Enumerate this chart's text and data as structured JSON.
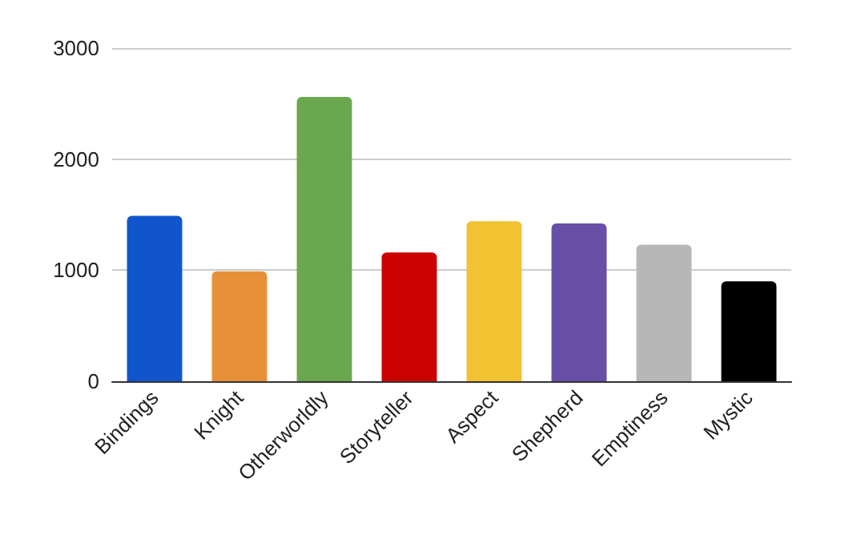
{
  "chart_data": {
    "type": "bar",
    "categories": [
      "Bindings",
      "Knight",
      "Otherworldly",
      "Storyteller",
      "Aspect",
      "Shepherd",
      "Emptiness",
      "Mystic"
    ],
    "values": [
      1490,
      990,
      2560,
      1160,
      1440,
      1420,
      1230,
      900
    ],
    "colors": [
      "#1155cc",
      "#e69138",
      "#6aa84f",
      "#cc0000",
      "#f1c232",
      "#674ea7",
      "#b7b7b7",
      "#000000"
    ],
    "ylim": [
      0,
      3000
    ],
    "yticks": [
      0,
      1000,
      2000,
      3000
    ],
    "grid": "y"
  }
}
